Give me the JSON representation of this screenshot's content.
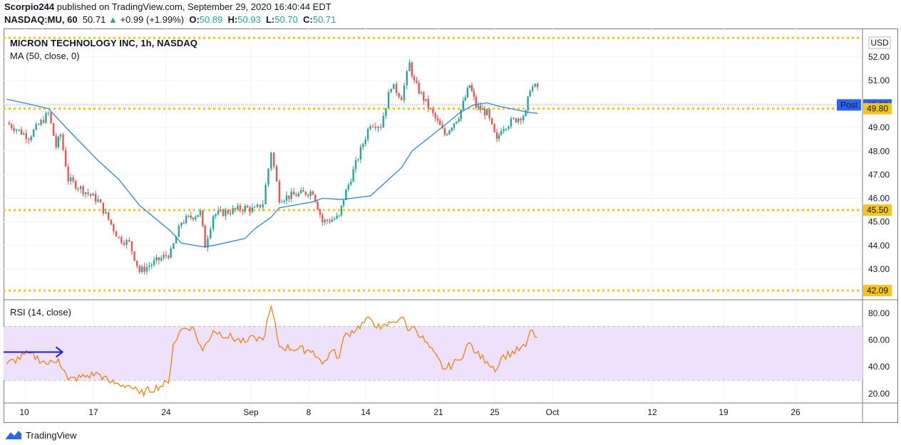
{
  "header": {
    "author": "Scorpio244",
    "published_text": "published on TradingView.com, September 29, 2020 16:40:44 EDT"
  },
  "symbol_line": {
    "symbol": "NASDAQ:MU, 60",
    "last": "50.71",
    "change": "+0.99 (+1.99%)",
    "open_label": "O:",
    "open": "50.89",
    "high_label": "H:",
    "high": "50.93",
    "low_label": "L:",
    "low": "50.70",
    "close_label": "C:",
    "close": "50.71"
  },
  "legend": {
    "title": "MICRON TECHNOLOGY INC, 1h, NASDAQ",
    "ma": "MA (50, close, 0)",
    "rsi": "RSI (14, close)"
  },
  "currency": "USD",
  "footer": {
    "brand": "TradingView"
  },
  "colors": {
    "bull": "#26a69a",
    "bear": "#ef5350",
    "ma": "#2e86de",
    "rsi": "#f57c00",
    "level": "#f5c518",
    "post": "#2962ff",
    "rsi_band": "#e7dcf9",
    "arrow": "#1a1aff"
  },
  "chart_data": [
    {
      "type": "candlestick",
      "title": "MICRON TECHNOLOGY INC, 1h, NASDAQ",
      "ylim": [
        41.7,
        53.2
      ],
      "y_ticks": [
        "52.00",
        "51.00",
        "50.00",
        "49.00",
        "48.00",
        "47.00",
        "46.00",
        "45.00",
        "44.00",
        "43.00"
      ],
      "x_ticks": [
        "10",
        "17",
        "24",
        "Sep",
        "8",
        "14",
        "21",
        "25",
        "Oct",
        "12",
        "19",
        "26"
      ],
      "horizontal_levels": [
        "52.80",
        "49.80",
        "45.50",
        "42.09"
      ],
      "labeled_levels": [
        "49.80",
        "45.50",
        "42.09"
      ],
      "post_price": "49.96",
      "post_label": "Post",
      "anchors": [
        {
          "date": "Aug 7",
          "price": 49.2
        },
        {
          "date": "Aug 10",
          "price": 48.6
        },
        {
          "date": "Aug 12",
          "price": 49.6
        },
        {
          "date": "Aug 13",
          "price": 48.2
        },
        {
          "date": "Aug 13",
          "price": 48.7
        },
        {
          "date": "Aug 14",
          "price": 46.8
        },
        {
          "date": "Aug 17",
          "price": 45.9
        },
        {
          "date": "Aug 18",
          "price": 45.1
        },
        {
          "date": "Aug 19",
          "price": 44.3
        },
        {
          "date": "Aug 20",
          "price": 44.1
        },
        {
          "date": "Aug 21",
          "price": 42.9
        },
        {
          "date": "Aug 24",
          "price": 43.7
        },
        {
          "date": "Aug 25",
          "price": 45.0
        },
        {
          "date": "Aug 27",
          "price": 45.4
        },
        {
          "date": "Aug 27",
          "price": 44.0
        },
        {
          "date": "Aug 28",
          "price": 45.3
        },
        {
          "date": "Aug 31",
          "price": 45.6
        },
        {
          "date": "Sep 1",
          "price": 45.5
        },
        {
          "date": "Sep 2",
          "price": 45.8
        },
        {
          "date": "Sep 3",
          "price": 48.0
        },
        {
          "date": "Sep 4",
          "price": 46.0
        },
        {
          "date": "Sep 8",
          "price": 46.3
        },
        {
          "date": "Sep 9",
          "price": 45.0
        },
        {
          "date": "Sep 11",
          "price": 45.2
        },
        {
          "date": "Sep 11",
          "price": 46.0
        },
        {
          "date": "Sep 14",
          "price": 49.2
        },
        {
          "date": "Sep 15",
          "price": 49.1
        },
        {
          "date": "Sep 16",
          "price": 50.8
        },
        {
          "date": "Sep 17",
          "price": 50.3
        },
        {
          "date": "Sep 18",
          "price": 51.7
        },
        {
          "date": "Sep 18",
          "price": 50.9
        },
        {
          "date": "Sep 21",
          "price": 48.7
        },
        {
          "date": "Sep 22",
          "price": 49.5
        },
        {
          "date": "Sep 23",
          "price": 50.8
        },
        {
          "date": "Sep 23",
          "price": 49.9
        },
        {
          "date": "Sep 24",
          "price": 49.6
        },
        {
          "date": "Sep 25",
          "price": 48.4
        },
        {
          "date": "Sep 25",
          "price": 49.0
        },
        {
          "date": "Sep 28",
          "price": 49.6
        },
        {
          "date": "Sep 28",
          "price": 50.7
        },
        {
          "date": "Sep 29",
          "price": 50.71
        }
      ],
      "ma_50": [
        {
          "date": "Aug 7",
          "value": 50.2
        },
        {
          "date": "Aug 10",
          "value": 50.0
        },
        {
          "date": "Aug 12",
          "value": 49.8
        },
        {
          "date": "Aug 14",
          "value": 48.9
        },
        {
          "date": "Aug 17",
          "value": 47.6
        },
        {
          "date": "Aug 19",
          "value": 46.8
        },
        {
          "date": "Aug 21",
          "value": 45.7
        },
        {
          "date": "Aug 24",
          "value": 44.6
        },
        {
          "date": "Aug 25",
          "value": 44.1
        },
        {
          "date": "Aug 27",
          "value": 43.95
        },
        {
          "date": "Aug 28",
          "value": 44.0
        },
        {
          "date": "Aug 31",
          "value": 44.3
        },
        {
          "date": "Sep 1",
          "value": 44.7
        },
        {
          "date": "Sep 3",
          "value": 45.2
        },
        {
          "date": "Sep 4",
          "value": 45.6
        },
        {
          "date": "Sep 8",
          "value": 45.85
        },
        {
          "date": "Sep 9",
          "value": 46.0
        },
        {
          "date": "Sep 11",
          "value": 45.95
        },
        {
          "date": "Sep 14",
          "value": 46.1
        },
        {
          "date": "Sep 15",
          "value": 46.5
        },
        {
          "date": "Sep 17",
          "value": 47.3
        },
        {
          "date": "Sep 18",
          "value": 48.0
        },
        {
          "date": "Sep 21",
          "value": 49.1
        },
        {
          "date": "Sep 22",
          "value": 49.6
        },
        {
          "date": "Sep 23",
          "value": 49.95
        },
        {
          "date": "Sep 24",
          "value": 50.05
        },
        {
          "date": "Sep 25",
          "value": 49.9
        },
        {
          "date": "Sep 28",
          "value": 49.65
        },
        {
          "date": "Sep 29",
          "value": 49.6
        }
      ]
    },
    {
      "type": "line",
      "title": "RSI (14, close)",
      "ylim": [
        13,
        90
      ],
      "y_ticks": [
        "80.00",
        "60.00",
        "40.00",
        "20.00"
      ],
      "band": [
        30,
        70
      ],
      "series": [
        {
          "values": [
            {
              "date": "Aug 7",
              "value": 42
            },
            {
              "date": "Aug 10",
              "value": 50
            },
            {
              "date": "Aug 12",
              "value": 42
            },
            {
              "date": "Aug 13",
              "value": 46
            },
            {
              "date": "Aug 14",
              "value": 30
            },
            {
              "date": "Aug 17",
              "value": 35
            },
            {
              "date": "Aug 18",
              "value": 29
            },
            {
              "date": "Aug 19",
              "value": 27
            },
            {
              "date": "Aug 20",
              "value": 26
            },
            {
              "date": "Aug 21",
              "value": 20
            },
            {
              "date": "Aug 24",
              "value": 28
            },
            {
              "date": "Aug 24",
              "value": 57
            },
            {
              "date": "Aug 25",
              "value": 68
            },
            {
              "date": "Aug 26",
              "value": 70
            },
            {
              "date": "Aug 27",
              "value": 52
            },
            {
              "date": "Aug 28",
              "value": 67
            },
            {
              "date": "Aug 31",
              "value": 58
            },
            {
              "date": "Sep 1",
              "value": 62
            },
            {
              "date": "Sep 2",
              "value": 60
            },
            {
              "date": "Sep 3",
              "value": 85
            },
            {
              "date": "Sep 4",
              "value": 55
            },
            {
              "date": "Sep 8",
              "value": 52
            },
            {
              "date": "Sep 9",
              "value": 42
            },
            {
              "date": "Sep 10",
              "value": 52
            },
            {
              "date": "Sep 11",
              "value": 47
            },
            {
              "date": "Sep 11",
              "value": 62
            },
            {
              "date": "Sep 14",
              "value": 76
            },
            {
              "date": "Sep 15",
              "value": 68
            },
            {
              "date": "Sep 16",
              "value": 73
            },
            {
              "date": "Sep 17",
              "value": 77
            },
            {
              "date": "Sep 18",
              "value": 67
            },
            {
              "date": "Sep 18",
              "value": 70
            },
            {
              "date": "Sep 21",
              "value": 38
            },
            {
              "date": "Sep 22",
              "value": 45
            },
            {
              "date": "Sep 23",
              "value": 58
            },
            {
              "date": "Sep 23",
              "value": 50
            },
            {
              "date": "Sep 24",
              "value": 44
            },
            {
              "date": "Sep 25",
              "value": 38
            },
            {
              "date": "Sep 25",
              "value": 47
            },
            {
              "date": "Sep 28",
              "value": 55
            },
            {
              "date": "Sep 28",
              "value": 67
            },
            {
              "date": "Sep 29",
              "value": 62
            }
          ]
        }
      ],
      "annotation_arrow": {
        "from": {
          "date": "Aug 7",
          "value": 51
        },
        "to": {
          "date": "Aug 13",
          "value": 51
        }
      }
    }
  ]
}
